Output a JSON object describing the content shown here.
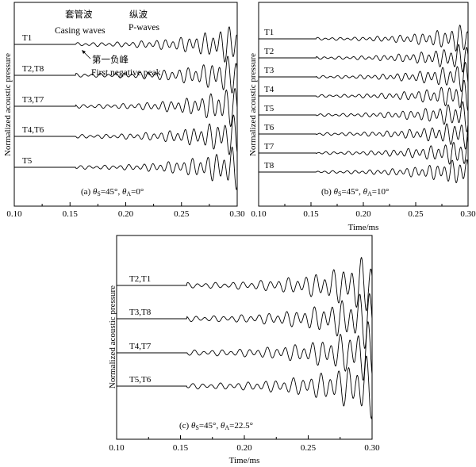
{
  "chart_data": [
    {
      "type": "line",
      "panel": "a",
      "caption_prefix": "(a) ",
      "theta_s": "45°",
      "theta_a": "0°",
      "xlabel": "",
      "ylabel": "Normalized acoustic pressure",
      "xlim": [
        0.1,
        0.3
      ],
      "xticks": [
        "0.10",
        "0.15",
        "0.20",
        "0.25",
        "0.30"
      ],
      "traces": [
        "T1",
        "T2,T8",
        "T3,T7",
        "T4,T6",
        "T5"
      ],
      "onset_ms": 0.155,
      "annotations": {
        "casing_zh": "套管波",
        "casing_en": "Casing waves",
        "p_zh": "纵波",
        "p_en": "P-waves",
        "peak_zh": "第一负峰",
        "peak_en": "First negative peak"
      }
    },
    {
      "type": "line",
      "panel": "b",
      "caption_prefix": "(b) ",
      "theta_s": "45°",
      "theta_a": "10°",
      "xlabel": "Time/ms",
      "ylabel": "Normalized acoustic pressure",
      "xlim": [
        0.1,
        0.3
      ],
      "xticks": [
        "0.10",
        "0.15",
        "0.20",
        "0.25",
        "0.30"
      ],
      "traces": [
        "T1",
        "T2",
        "T3",
        "T4",
        "T5",
        "T6",
        "T7",
        "T8"
      ],
      "onset_ms": 0.155
    },
    {
      "type": "line",
      "panel": "c",
      "caption_prefix": "(c) ",
      "theta_s": "45°",
      "theta_a": "22.5°",
      "xlabel": "Time/ms",
      "ylabel": "Normalized acoustic pressure",
      "xlim": [
        0.1,
        0.3
      ],
      "xticks": [
        "0.10",
        "0.15",
        "0.20",
        "0.25",
        "0.30"
      ],
      "traces": [
        "T2,T1",
        "T3,T8",
        "T4,T7",
        "T5,T6"
      ],
      "onset_ms": 0.155
    }
  ]
}
